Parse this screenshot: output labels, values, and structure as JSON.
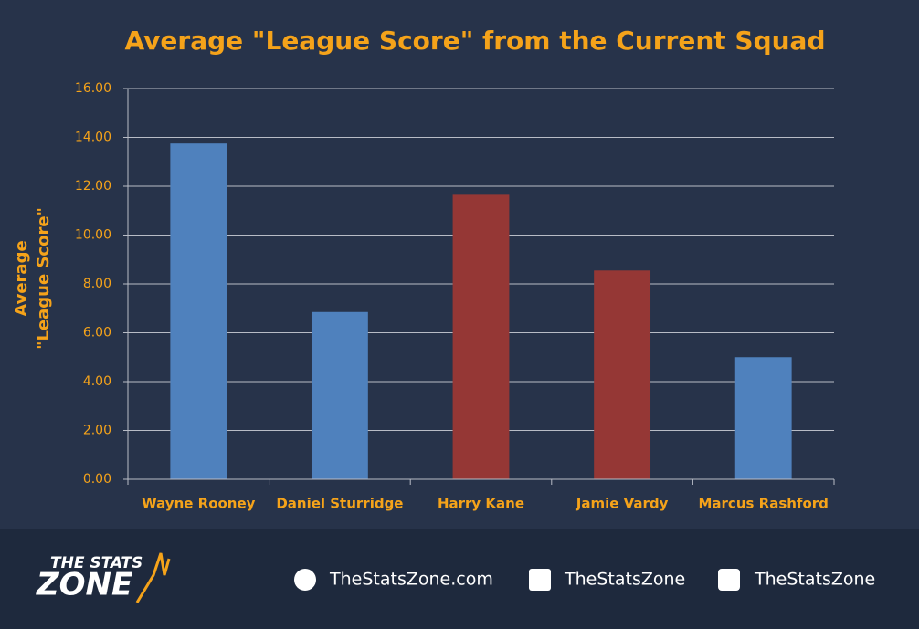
{
  "chart_data": {
    "type": "bar",
    "title": "Average \"League Score\" from the Current Squad",
    "y_label": [
      "Average",
      "\"League Score\""
    ],
    "categories": [
      "Wayne Rooney",
      "Daniel Sturridge",
      "Harry Kane",
      "Jamie Vardy",
      "Marcus Rashford"
    ],
    "values": [
      13.75,
      6.85,
      11.65,
      8.55,
      5.0
    ],
    "colors": [
      "#4f81bd",
      "#4f81bd",
      "#953735",
      "#953735",
      "#4f81bd"
    ],
    "ylim": [
      0,
      16
    ],
    "yticks": [
      {
        "value": 0,
        "label": "0.00"
      },
      {
        "value": 2,
        "label": "2.00"
      },
      {
        "value": 4,
        "label": "4.00"
      },
      {
        "value": 6,
        "label": "6.00"
      },
      {
        "value": 8,
        "label": "8.00"
      },
      {
        "value": 10,
        "label": "10.00"
      },
      {
        "value": 12,
        "label": "12.00"
      },
      {
        "value": 14,
        "label": "14.00"
      },
      {
        "value": 16,
        "label": "16.00"
      }
    ],
    "grid": true
  },
  "footer": {
    "logo": [
      "THE STATS",
      "ZONE"
    ],
    "website": "TheStatsZone.com",
    "facebook": "TheStatsZone",
    "twitter": "TheStatsZone"
  }
}
